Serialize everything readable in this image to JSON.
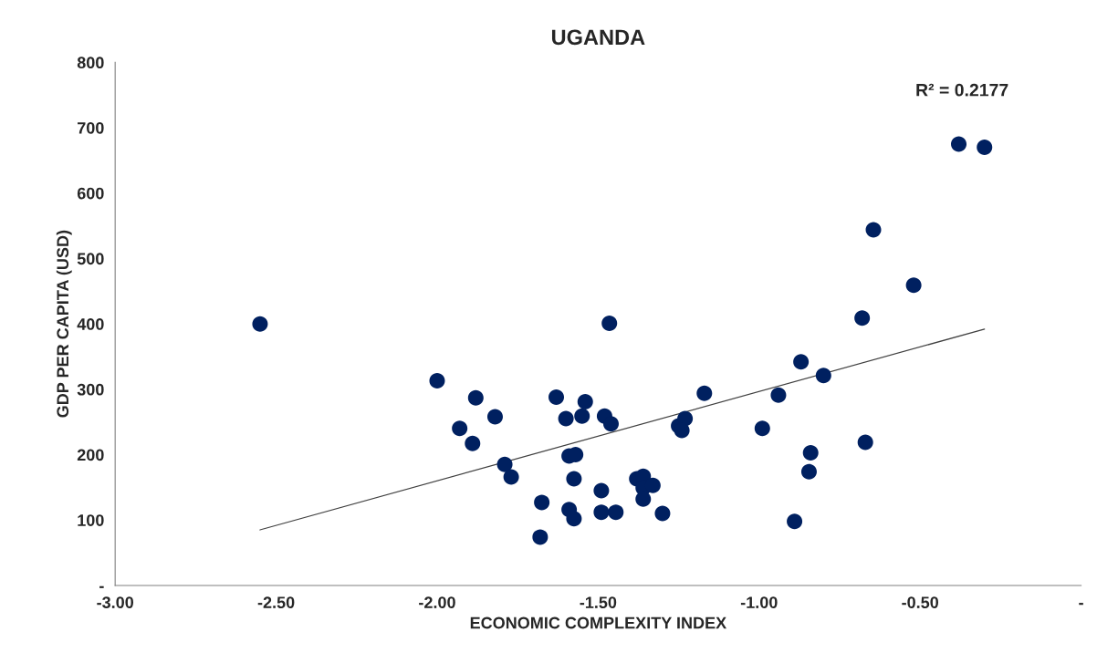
{
  "chart_data": {
    "type": "scatter",
    "title": "UGANDA",
    "xlabel": "ECONOMIC COMPLEXITY INDEX",
    "ylabel": "GDP PER CAPITA (USD)",
    "annotations": [
      "R² = 0.2177"
    ],
    "grid": false,
    "legend": false,
    "xlim": [
      -3,
      0
    ],
    "xticks": [
      {
        "value": -3,
        "label": "-3.00"
      },
      {
        "value": -2.5,
        "label": "-2.50"
      },
      {
        "value": -2,
        "label": "-2.00"
      },
      {
        "value": -1.5,
        "label": "-1.50"
      },
      {
        "value": -1,
        "label": "-1.00"
      },
      {
        "value": -0.5,
        "label": "-0.50"
      },
      {
        "value": 0,
        "label": "-"
      }
    ],
    "ylim": [
      0,
      800
    ],
    "yticks": [
      {
        "value": 0,
        "label": "-"
      },
      100,
      200,
      300,
      400,
      500,
      600,
      700,
      800
    ],
    "series": [
      {
        "marker": "circle",
        "color": "#002060",
        "x": [
          -2.55,
          -2.0,
          -1.88,
          -1.82,
          -1.93,
          -1.89,
          -1.63,
          -1.54,
          -1.6,
          -1.55,
          -1.48,
          -1.46,
          -1.25,
          -1.23,
          -1.24,
          -1.59,
          -1.57,
          -1.79,
          -1.77,
          -1.575,
          -1.49,
          -1.38,
          -1.36,
          -1.36,
          -1.33,
          -1.36,
          -1.675,
          -1.59,
          -1.575,
          -1.49,
          -1.445,
          -1.3,
          -1.68,
          -1.465,
          -0.38,
          -0.3,
          -0.645,
          -0.52,
          -0.68,
          -0.87,
          -0.8,
          -1.17,
          -0.94,
          -0.99,
          -0.67,
          -0.84,
          -0.845,
          -0.89
        ],
        "values": [
          400,
          313,
          287,
          258,
          240,
          217,
          288,
          281,
          255,
          259,
          259,
          247,
          244,
          255,
          237,
          198,
          200,
          185,
          166,
          163,
          145,
          163,
          167,
          149,
          153,
          132,
          127,
          116,
          102,
          112,
          112,
          110,
          74,
          401,
          675,
          670,
          544,
          459,
          409,
          342,
          321,
          294,
          291,
          240,
          219,
          203,
          174,
          98
        ]
      },
      {
        "type": "line",
        "marker": "none",
        "color": "#404040",
        "x": [
          -2.55,
          -0.3
        ],
        "values": [
          85,
          392
        ]
      }
    ]
  }
}
